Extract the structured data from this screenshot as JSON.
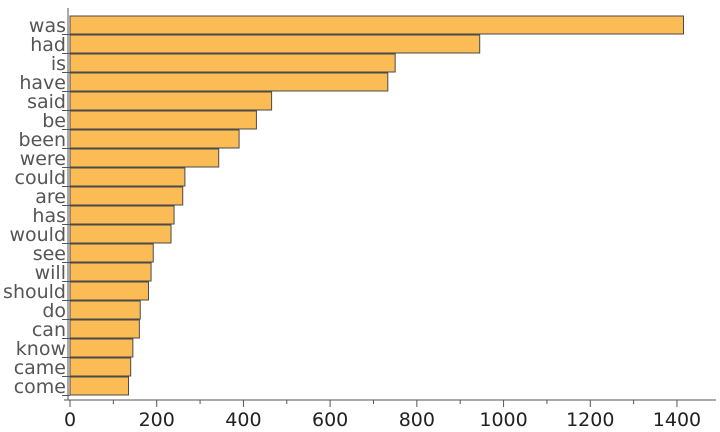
{
  "chart_data": {
    "type": "bar",
    "orientation": "horizontal",
    "title": "",
    "xlabel": "",
    "ylabel": "",
    "categories": [
      "was",
      "had",
      "is",
      "have",
      "said",
      "be",
      "been",
      "were",
      "could",
      "are",
      "has",
      "would",
      "see",
      "will",
      "should",
      "do",
      "can",
      "know",
      "came",
      "come"
    ],
    "values": [
      1415,
      945,
      750,
      733,
      465,
      430,
      390,
      343,
      265,
      260,
      240,
      233,
      192,
      187,
      181,
      162,
      160,
      145,
      140,
      135
    ],
    "xlim": [
      0,
      1490
    ],
    "xticks_major": [
      0,
      200,
      400,
      600,
      800,
      1000,
      1200,
      1400
    ],
    "xticks_minor_step": 100,
    "grid": false,
    "legend": "none",
    "bar_color": "#fbbc55",
    "edge_color": "#4a4a4a"
  }
}
